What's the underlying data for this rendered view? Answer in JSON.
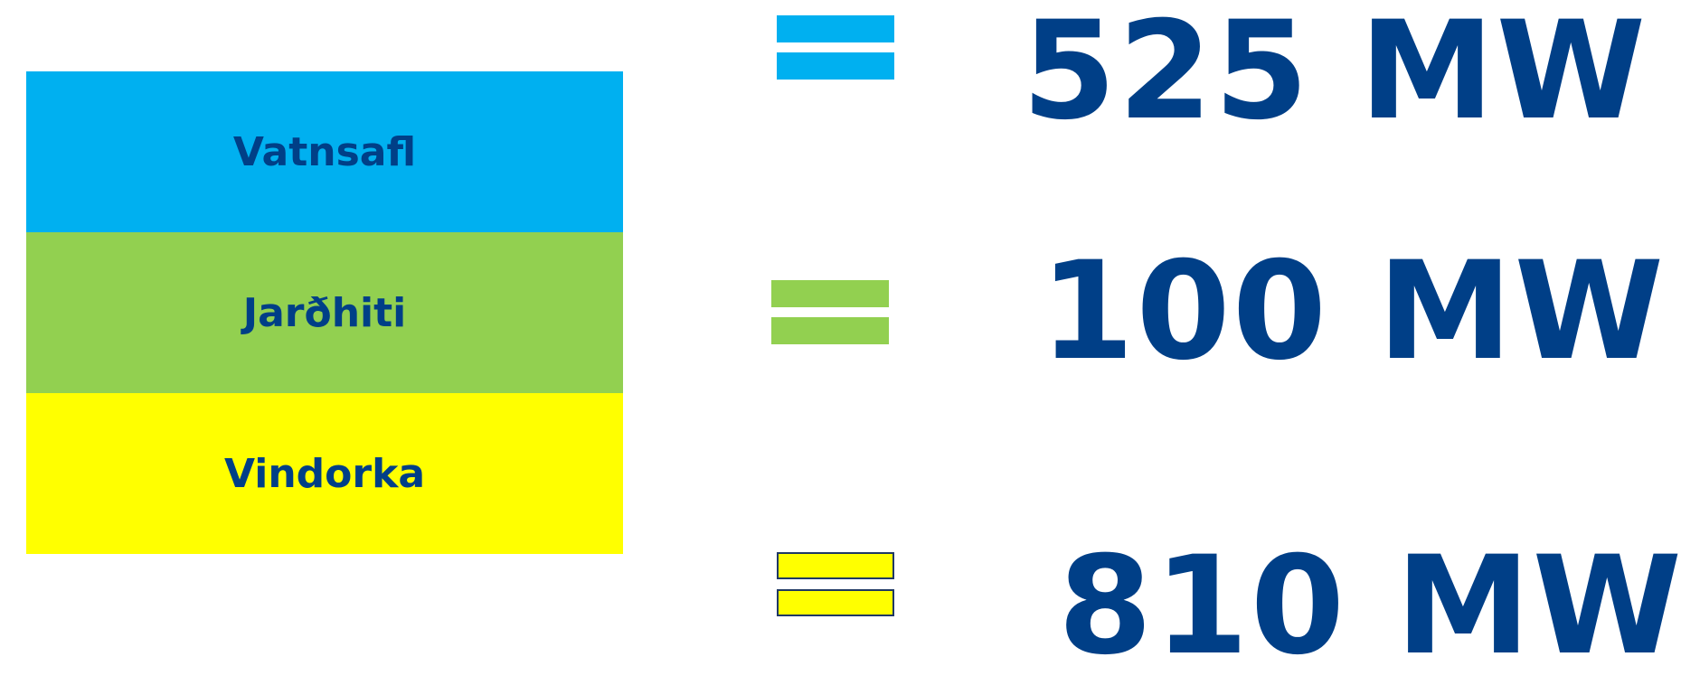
{
  "rows": [
    {
      "label": "Vatnsafl",
      "value": "525 MW",
      "color": "#00b0f0",
      "bar_border": "#00b0f0"
    },
    {
      "label": "Jarðhiti",
      "value": "100 MW",
      "color": "#92d050",
      "bar_border": "#92d050"
    },
    {
      "label": "Vindorka",
      "value": "810 MW",
      "color": "#ffff00",
      "bar_border": "#1f3864"
    }
  ],
  "text_color": "#003f87"
}
